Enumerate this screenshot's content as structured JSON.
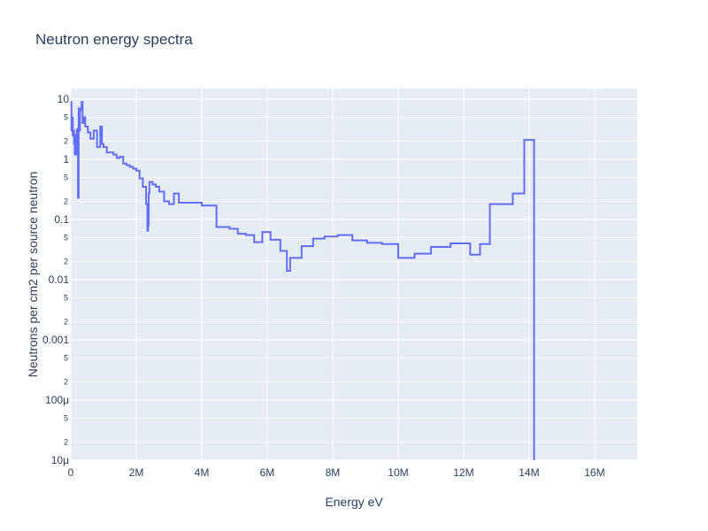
{
  "chart_data": {
    "type": "line",
    "line_shape": "step",
    "title": "Neutron energy spectra",
    "xlabel": "Energy eV",
    "ylabel": "Neutrons per cm2 per source neutron",
    "xlim": [
      0,
      17300000
    ],
    "ylim": [
      1e-05,
      15
    ],
    "yscale": "log",
    "grid": true,
    "colors": {
      "plot_bg": "#e5ecf6",
      "line": "#636efa",
      "text": "#2a3f5f",
      "grid": "#ffffff"
    },
    "x_ticks": [
      {
        "value": 0,
        "label": "0"
      },
      {
        "value": 2000000,
        "label": "2M"
      },
      {
        "value": 4000000,
        "label": "4M"
      },
      {
        "value": 6000000,
        "label": "6M"
      },
      {
        "value": 8000000,
        "label": "8M"
      },
      {
        "value": 10000000,
        "label": "10M"
      },
      {
        "value": 12000000,
        "label": "12M"
      },
      {
        "value": 14000000,
        "label": "14M"
      },
      {
        "value": 16000000,
        "label": "16M"
      }
    ],
    "y_ticks": [
      {
        "value": 10,
        "label": "10"
      },
      {
        "value": 1,
        "label": "1"
      },
      {
        "value": 0.1,
        "label": "0.1"
      },
      {
        "value": 0.01,
        "label": "0.01"
      },
      {
        "value": 0.001,
        "label": "0.001"
      },
      {
        "value": 0.0001,
        "label": "100μ"
      },
      {
        "value": 1e-05,
        "label": "10μ"
      }
    ],
    "y_minor_ticks": [
      {
        "value": 5,
        "label": "5"
      },
      {
        "value": 2,
        "label": "2"
      },
      {
        "value": 0.5,
        "label": "5"
      },
      {
        "value": 0.2,
        "label": "2"
      },
      {
        "value": 0.05,
        "label": "5"
      },
      {
        "value": 0.02,
        "label": "2"
      },
      {
        "value": 0.005,
        "label": "5"
      },
      {
        "value": 0.002,
        "label": "2"
      },
      {
        "value": 0.0005,
        "label": "5"
      },
      {
        "value": 0.0002,
        "label": "2"
      },
      {
        "value": 5e-05,
        "label": "5"
      },
      {
        "value": 2e-05,
        "label": "2"
      }
    ],
    "series": [
      {
        "x": [
          0,
          20000,
          40000,
          60000,
          80000,
          100000,
          120000,
          140000,
          160000,
          180000,
          200000,
          220000,
          240000,
          260000,
          280000,
          300000,
          330000,
          360000,
          400000,
          440000,
          480000,
          520000,
          560000,
          600000,
          650000,
          700000,
          800000,
          900000,
          950000,
          1000000,
          1100000,
          1200000,
          1300000,
          1400000,
          1500000,
          1600000,
          1700000,
          1800000,
          1900000,
          2000000,
          2100000,
          2200000,
          2300000,
          2340000,
          2360000,
          2380000,
          2400000,
          2500000,
          2600000,
          2700000,
          2850000,
          3000000,
          3150000,
          3300000,
          3650000,
          4000000,
          4450000,
          4850000,
          5100000,
          5350000,
          5600000,
          5850000,
          6100000,
          6400000,
          6600000,
          6700000,
          7050000,
          7400000,
          7750000,
          8150000,
          8600000,
          9050000,
          9500000,
          10000000,
          10500000,
          11000000,
          11600000,
          12200000,
          12500000,
          12800000,
          13500000,
          13850000,
          14150000
        ],
        "y": [
          9,
          3,
          5,
          2.5,
          3,
          1.8,
          1.2,
          2.5,
          1.2,
          3,
          3.2,
          0.23,
          7,
          3,
          6.5,
          7,
          9,
          4,
          5,
          3.5,
          3.5,
          2.8,
          2.8,
          2.2,
          2.2,
          3,
          1.6,
          3.5,
          1.8,
          1.6,
          1.3,
          1.3,
          1.2,
          1.05,
          1.1,
          0.85,
          0.8,
          0.75,
          0.7,
          0.65,
          0.48,
          0.35,
          0.18,
          0.065,
          0.08,
          0.27,
          0.42,
          0.38,
          0.35,
          0.29,
          0.2,
          0.18,
          0.27,
          0.19,
          0.19,
          0.17,
          0.075,
          0.07,
          0.058,
          0.055,
          0.042,
          0.062,
          0.046,
          0.03,
          0.014,
          0.023,
          0.036,
          0.048,
          0.052,
          0.055,
          0.045,
          0.041,
          0.039,
          0.023,
          0.027,
          0.035,
          0.04,
          0.026,
          0.039,
          0.18,
          0.27,
          2.1,
          1e-06
        ]
      }
    ]
  }
}
